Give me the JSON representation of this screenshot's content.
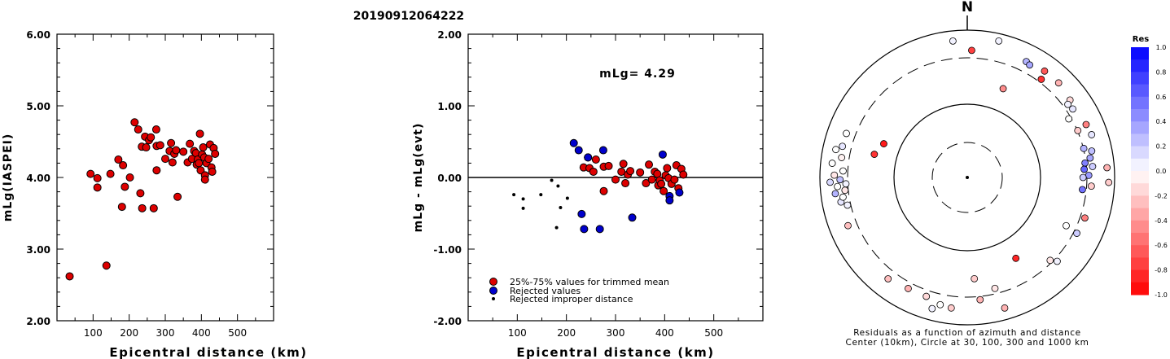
{
  "event_id": "20190912064222",
  "colors": {
    "red": "#dd0000",
    "blue": "#0000cc",
    "black": "#000000"
  },
  "chart_data": [
    {
      "type": "scatter",
      "xlabel": "Epicentral distance (km)",
      "ylabel": "mLg(IASPEI)",
      "xlim": [
        0,
        600
      ],
      "ylim": [
        2.0,
        6.0
      ],
      "xticks": [
        "100",
        "200",
        "300",
        "400",
        "500"
      ],
      "yticks": [
        "2.00",
        "3.00",
        "4.00",
        "5.00",
        "6.00"
      ],
      "points": [
        [
          35,
          2.62
        ],
        [
          93,
          4.05
        ],
        [
          112,
          3.99
        ],
        [
          112,
          3.86
        ],
        [
          137,
          2.77
        ],
        [
          148,
          4.05
        ],
        [
          170,
          4.25
        ],
        [
          180,
          3.59
        ],
        [
          183,
          4.17
        ],
        [
          188,
          3.87
        ],
        [
          202,
          4.0
        ],
        [
          215,
          4.77
        ],
        [
          225,
          4.67
        ],
        [
          231,
          3.78
        ],
        [
          236,
          3.57
        ],
        [
          235,
          4.43
        ],
        [
          244,
          4.57
        ],
        [
          247,
          4.42
        ],
        [
          255,
          4.52
        ],
        [
          260,
          4.56
        ],
        [
          268,
          3.57
        ],
        [
          275,
          4.67
        ],
        [
          276,
          4.44
        ],
        [
          276,
          4.1
        ],
        [
          286,
          4.45
        ],
        [
          300,
          4.26
        ],
        [
          312,
          4.37
        ],
        [
          316,
          4.48
        ],
        [
          320,
          4.21
        ],
        [
          325,
          4.33
        ],
        [
          330,
          4.38
        ],
        [
          334,
          3.73
        ],
        [
          350,
          4.36
        ],
        [
          362,
          4.21
        ],
        [
          368,
          4.47
        ],
        [
          374,
          4.26
        ],
        [
          380,
          4.37
        ],
        [
          385,
          4.34
        ],
        [
          387,
          4.18
        ],
        [
          390,
          4.25
        ],
        [
          393,
          4.2
        ],
        [
          396,
          4.61
        ],
        [
          398,
          4.1
        ],
        [
          402,
          4.32
        ],
        [
          405,
          4.42
        ],
        [
          408,
          4.28
        ],
        [
          410,
          4.03
        ],
        [
          410,
          3.97
        ],
        [
          414,
          4.2
        ],
        [
          420,
          4.26
        ],
        [
          424,
          4.46
        ],
        [
          428,
          4.14
        ],
        [
          430,
          4.08
        ],
        [
          434,
          4.41
        ],
        [
          438,
          4.33
        ]
      ]
    },
    {
      "type": "scatter",
      "xlabel": "Epicentral distance (km)",
      "ylabel": "mLg - mLg(evt)",
      "xlim": [
        0,
        600
      ],
      "ylim": [
        -2.0,
        2.0
      ],
      "xticks": [
        "100",
        "200",
        "300",
        "400",
        "500"
      ],
      "yticks": [
        "-2.00",
        "-1.00",
        "0.00",
        "1.00",
        "2.00"
      ],
      "annotation": "mLg= 4.29",
      "series": [
        {
          "name": "25%-75% values for trimmed mean",
          "color": "red",
          "points": [
            [
              235,
              0.14
            ],
            [
              244,
              0.28
            ],
            [
              247,
              0.13
            ],
            [
              255,
              0.08
            ],
            [
              260,
              0.25
            ],
            [
              276,
              0.15
            ],
            [
              276,
              -0.19
            ],
            [
              286,
              0.16
            ],
            [
              300,
              -0.03
            ],
            [
              312,
              0.08
            ],
            [
              316,
              0.19
            ],
            [
              320,
              -0.08
            ],
            [
              325,
              0.04
            ],
            [
              330,
              0.09
            ],
            [
              350,
              0.07
            ],
            [
              362,
              -0.08
            ],
            [
              368,
              0.18
            ],
            [
              374,
              -0.03
            ],
            [
              380,
              0.08
            ],
            [
              385,
              0.05
            ],
            [
              387,
              -0.11
            ],
            [
              390,
              -0.04
            ],
            [
              393,
              -0.09
            ],
            [
              398,
              -0.19
            ],
            [
              402,
              0.03
            ],
            [
              405,
              0.13
            ],
            [
              408,
              -0.01
            ],
            [
              414,
              -0.09
            ],
            [
              420,
              -0.03
            ],
            [
              424,
              0.17
            ],
            [
              428,
              -0.15
            ],
            [
              434,
              0.12
            ],
            [
              438,
              0.04
            ]
          ]
        },
        {
          "name": "Rejected values",
          "color": "blue",
          "points": [
            [
              215,
              0.48
            ],
            [
              225,
              0.38
            ],
            [
              231,
              -0.51
            ],
            [
              236,
              -0.72
            ],
            [
              244,
              0.28
            ],
            [
              268,
              -0.72
            ],
            [
              275,
              0.38
            ],
            [
              334,
              -0.56
            ],
            [
              396,
              0.32
            ],
            [
              410,
              -0.26
            ],
            [
              410,
              -0.32
            ],
            [
              430,
              -0.21
            ]
          ]
        },
        {
          "name": "Rejected improper distance",
          "color": "black",
          "points": [
            [
              93,
              -0.24
            ],
            [
              112,
              -0.3
            ],
            [
              112,
              -0.43
            ],
            [
              148,
              -0.24
            ],
            [
              170,
              -0.04
            ],
            [
              180,
              -0.7
            ],
            [
              183,
              -0.12
            ],
            [
              188,
              -0.42
            ],
            [
              202,
              -0.29
            ]
          ]
        }
      ]
    },
    {
      "type": "polar-scatter",
      "north_label": "N",
      "caption_line1": "Residuals as a function of azimuth and distance",
      "caption_line2": "Center (10km), Circle at 30, 100, 300 and 1000 km",
      "colorbar_title": "Res",
      "colorbar_ticks": [
        "1.0",
        "0.8",
        "0.6",
        "0.4",
        "0.2",
        "0.0",
        "-0.2",
        "-0.4",
        "-0.6",
        "-0.8",
        "-1.0"
      ],
      "colorbar_range": [
        -1.0,
        1.0
      ],
      "points": [
        {
          "az": -6,
          "r": 0.96,
          "res": 0.05
        },
        {
          "az": 2,
          "r": 0.89,
          "res": -0.75
        },
        {
          "az": 13,
          "r": 0.98,
          "res": 0.05
        },
        {
          "az": 27,
          "r": 0.91,
          "res": 0.3
        },
        {
          "az": 29,
          "r": 0.9,
          "res": 0.35
        },
        {
          "az": 22,
          "r": 0.67,
          "res": -0.45
        },
        {
          "az": 36,
          "r": 0.92,
          "res": -0.65
        },
        {
          "az": 37,
          "r": 0.86,
          "res": -0.8
        },
        {
          "az": 44,
          "r": 0.92,
          "res": -0.3
        },
        {
          "az": 53,
          "r": 0.9,
          "res": -0.15
        },
        {
          "az": 54,
          "r": 0.87,
          "res": 0.05
        },
        {
          "az": 57,
          "r": 0.88,
          "res": 0.1
        },
        {
          "az": 60,
          "r": 0.82,
          "res": 0.0
        },
        {
          "az": 66,
          "r": 0.91,
          "res": -0.5
        },
        {
          "az": 67,
          "r": 0.84,
          "res": -0.2
        },
        {
          "az": 71,
          "r": 0.92,
          "res": 0.1
        },
        {
          "az": 76,
          "r": 0.84,
          "res": 0.3
        },
        {
          "az": 78,
          "r": 0.89,
          "res": 0.25
        },
        {
          "az": 81,
          "r": 0.87,
          "res": 0.35
        },
        {
          "az": 83,
          "r": 0.83,
          "res": 0.5
        },
        {
          "az": 85,
          "r": 0.88,
          "res": 0.2
        },
        {
          "az": 86,
          "r": 0.82,
          "res": 0.6
        },
        {
          "az": 86,
          "r": 0.98,
          "res": -0.3
        },
        {
          "az": 89,
          "r": 0.85,
          "res": 0.4
        },
        {
          "az": 90,
          "r": 0.81,
          "res": 0.2
        },
        {
          "az": 92,
          "r": 0.99,
          "res": -0.2
        },
        {
          "az": 94,
          "r": 0.87,
          "res": -0.2
        },
        {
          "az": 96,
          "r": 0.81,
          "res": 0.55
        },
        {
          "az": 109,
          "r": 0.87,
          "res": -0.5
        },
        {
          "az": 116,
          "r": 0.77,
          "res": 0.0
        },
        {
          "az": 117,
          "r": 0.86,
          "res": 0.2
        },
        {
          "az": 133,
          "r": 0.86,
          "res": 0.05
        },
        {
          "az": 135,
          "r": 0.82,
          "res": -0.1
        },
        {
          "az": 149,
          "r": 0.66,
          "res": -0.85
        },
        {
          "az": 164,
          "r": 0.95,
          "res": -0.3
        },
        {
          "az": 166,
          "r": 0.8,
          "res": -0.1
        },
        {
          "az": 176,
          "r": 0.71,
          "res": -0.2
        },
        {
          "az": 174,
          "r": 0.86,
          "res": -0.3
        },
        {
          "az": 187,
          "r": 0.92,
          "res": -0.2
        },
        {
          "az": 192,
          "r": 0.91,
          "res": 0.0
        },
        {
          "az": 195,
          "r": 0.95,
          "res": 0.05
        },
        {
          "az": 199,
          "r": 0.88,
          "res": -0.15
        },
        {
          "az": 208,
          "r": 0.88,
          "res": -0.3
        },
        {
          "az": 218,
          "r": 0.9,
          "res": -0.25
        },
        {
          "az": 248,
          "r": 0.9,
          "res": -0.25
        },
        {
          "az": 257,
          "r": 0.86,
          "res": 0.05
        },
        {
          "az": 259,
          "r": 0.9,
          "res": 0.1
        },
        {
          "az": 261,
          "r": 0.88,
          "res": 0.0
        },
        {
          "az": 263,
          "r": 0.93,
          "res": 0.3
        },
        {
          "az": 264,
          "r": 0.86,
          "res": -0.1
        },
        {
          "az": 266,
          "r": 0.91,
          "res": 0.0
        },
        {
          "az": 267,
          "r": 0.85,
          "res": 0.05
        },
        {
          "az": 268,
          "r": 0.96,
          "res": 0.15
        },
        {
          "az": 269,
          "r": 0.89,
          "res": 0.25
        },
        {
          "az": 271,
          "r": 0.93,
          "res": -0.1
        },
        {
          "az": 273,
          "r": 0.87,
          "res": 0.0
        },
        {
          "az": 276,
          "r": 0.95,
          "res": 0.0
        },
        {
          "az": 279,
          "r": 0.89,
          "res": -0.05
        },
        {
          "az": 282,
          "r": 0.94,
          "res": 0.0
        },
        {
          "az": 284,
          "r": 0.9,
          "res": 0.1
        },
        {
          "az": 290,
          "r": 0.9,
          "res": 0.0
        },
        {
          "az": 284,
          "r": 0.67,
          "res": -0.8
        },
        {
          "az": 292,
          "r": 0.63,
          "res": -0.9
        }
      ]
    }
  ]
}
